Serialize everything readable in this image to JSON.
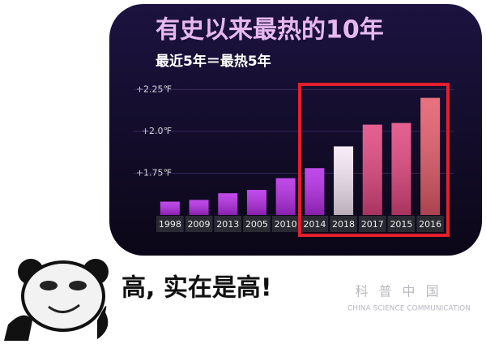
{
  "chart_data": {
    "type": "bar",
    "title": "有史以来最热的10年",
    "subtitle": "最近5年＝最热5年",
    "categories": [
      "1998",
      "2009",
      "2013",
      "2005",
      "2010",
      "2014",
      "2018",
      "2017",
      "2015",
      "2016"
    ],
    "values": [
      1.58,
      1.59,
      1.63,
      1.65,
      1.72,
      1.78,
      1.91,
      2.04,
      2.05,
      2.2
    ],
    "colors": [
      "#b52ae6",
      "#b52ae6",
      "#b52ae6",
      "#b52ae6",
      "#b52ae6",
      "#b52ae6",
      "#f6e8f6",
      "#e0457e",
      "#e0457e",
      "#e35a6a"
    ],
    "ylim": [
      1.5,
      2.3
    ],
    "yticks": [
      {
        "value": 1.75,
        "label": "+1.75℉"
      },
      {
        "value": 2.0,
        "label": "+2.0℉"
      },
      {
        "value": 2.25,
        "label": "+2.25℉"
      }
    ],
    "grid": true
  },
  "caption": "高, 实在是高!",
  "watermark": {
    "title": "科 普 中 国",
    "subtitle": "CHINA SCIENCE COMMUNICATION"
  }
}
